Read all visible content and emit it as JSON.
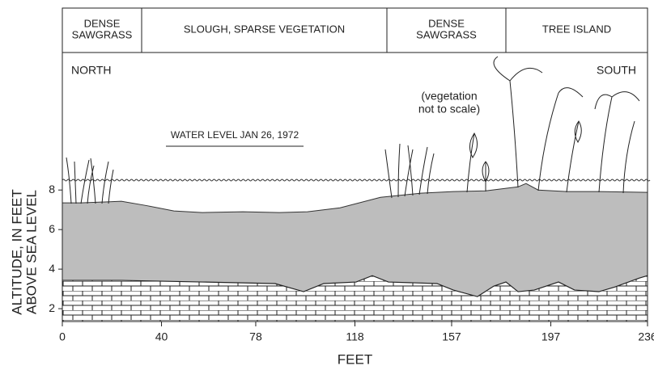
{
  "chart_data": {
    "type": "cross-section",
    "zones": [
      {
        "lines": [
          "DENSE",
          "SAWGRASS"
        ]
      },
      {
        "lines": [
          "SLOUGH, SPARSE VEGETATION"
        ]
      },
      {
        "lines": [
          "DENSE",
          "SAWGRASS"
        ]
      },
      {
        "lines": [
          "TREE ISLAND"
        ]
      }
    ],
    "annotations": {
      "north": "NORTH",
      "south": "SOUTH",
      "scale_note": [
        "(vegetation",
        "not to scale)"
      ],
      "water_label": "WATER LEVEL JAN 26, 1972"
    },
    "water_level": 8.5,
    "x_label": "FEET",
    "y_label": [
      "ALTITUDE, IN FEET",
      "ABOVE SEA LEVEL"
    ],
    "xlim": [
      0,
      236
    ],
    "xticks": [
      0,
      40,
      78,
      118,
      157,
      197,
      236
    ],
    "ylim": [
      1.35,
      17.2
    ],
    "yticks": [
      2,
      4,
      6,
      8
    ],
    "series": [
      {
        "name": "land surface",
        "color": "#bdbdbd",
        "x": [
          0,
          7.5,
          23.8,
          33.6,
          45,
          56.5,
          72.8,
          87.5,
          98.9,
          112,
          128.3,
          144.6,
          157.7,
          170.7,
          183.8,
          187,
          191.9,
          203.4,
          216.4,
          236
        ],
        "values": [
          7.35,
          7.35,
          7.43,
          7.22,
          6.94,
          6.86,
          6.9,
          6.86,
          6.9,
          7.1,
          7.63,
          7.84,
          7.92,
          7.96,
          8.16,
          8.33,
          8.0,
          7.92,
          7.92,
          7.88
        ]
      },
      {
        "name": "limestone surface",
        "color": "#ffffff",
        "x": [
          0,
          23.8,
          56.5,
          85.8,
          97.3,
          105.4,
          118.5,
          125,
          131.5,
          151.1,
          157.7,
          167.4,
          174,
          178.9,
          183.8,
          190.3,
          200.1,
          206.6,
          216.4,
          222.9,
          232.7,
          236
        ],
        "values": [
          3.43,
          3.43,
          3.35,
          3.27,
          2.86,
          3.27,
          3.35,
          3.67,
          3.35,
          3.27,
          2.94,
          2.61,
          3.14,
          3.35,
          2.86,
          2.94,
          3.35,
          2.94,
          2.86,
          3.1,
          3.55,
          3.67
        ]
      }
    ]
  }
}
